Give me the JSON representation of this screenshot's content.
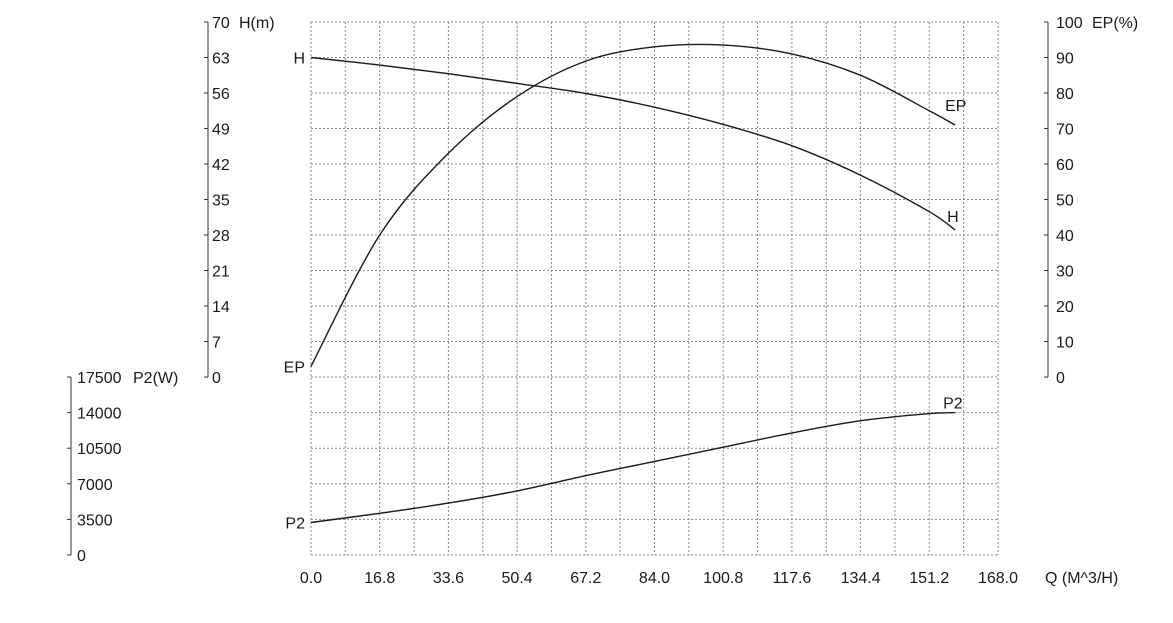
{
  "chart_data": {
    "type": "line",
    "x_axis": {
      "label": "Q (M^3/H)",
      "ticks": [
        "0.0",
        "16.8",
        "33.6",
        "50.4",
        "67.2",
        "84.0",
        "100.8",
        "117.6",
        "134.4",
        "151.2",
        "168.0"
      ],
      "range": [
        0,
        168
      ]
    },
    "y_axes": {
      "head": {
        "unit_label": "H(m)",
        "ticks": [
          "0",
          "7",
          "14",
          "21",
          "28",
          "35",
          "42",
          "49",
          "56",
          "63",
          "70"
        ],
        "range": [
          0,
          70
        ]
      },
      "efficiency": {
        "unit_label": "EP(%)",
        "ticks": [
          "0",
          "10",
          "20",
          "30",
          "40",
          "50",
          "60",
          "70",
          "80",
          "90",
          "100"
        ],
        "range": [
          0,
          100
        ]
      },
      "power": {
        "unit_label": "P2(W)",
        "ticks": [
          "0",
          "3500",
          "7000",
          "10500",
          "14000",
          "17500"
        ],
        "range": [
          0,
          17500
        ]
      }
    },
    "grid": true,
    "series": [
      {
        "name": "H",
        "axis": "head",
        "start_label": "H",
        "end_label": "H",
        "x": [
          0,
          16.8,
          33.6,
          50.4,
          67.2,
          84.0,
          100.8,
          117.6,
          134.4,
          151.2,
          157.5
        ],
        "y": [
          63.0,
          61.5,
          59.8,
          57.9,
          55.9,
          53.2,
          49.8,
          45.6,
          39.8,
          32.6,
          29.0
        ]
      },
      {
        "name": "EP",
        "axis": "efficiency",
        "start_label": "EP",
        "end_label": "EP",
        "x": [
          0,
          16.8,
          33.6,
          50.4,
          67.2,
          84.0,
          100.8,
          117.6,
          134.4,
          151.2,
          157.5
        ],
        "y": [
          3.0,
          40.0,
          63.0,
          79.0,
          89.0,
          93.0,
          93.5,
          91.0,
          85.0,
          75.0,
          71.0
        ]
      },
      {
        "name": "P2",
        "axis": "power",
        "start_label": "P2",
        "end_label": "P2",
        "x": [
          0,
          16.8,
          33.6,
          50.4,
          67.2,
          84.0,
          100.8,
          117.6,
          134.4,
          151.2,
          157.5
        ],
        "y": [
          3200,
          4100,
          5100,
          6300,
          7800,
          9200,
          10600,
          12000,
          13200,
          13900,
          14000
        ]
      }
    ]
  }
}
